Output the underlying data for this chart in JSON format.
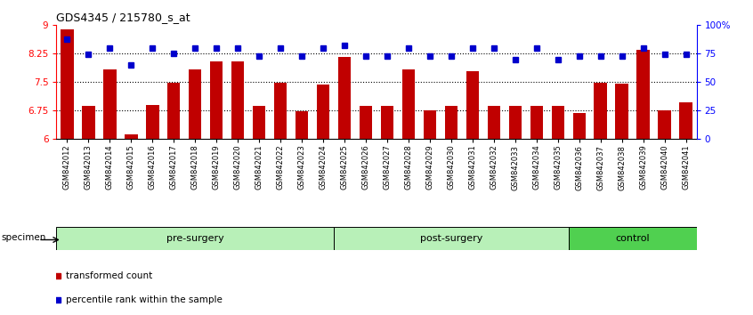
{
  "title": "GDS4345 / 215780_s_at",
  "categories": [
    "GSM842012",
    "GSM842013",
    "GSM842014",
    "GSM842015",
    "GSM842016",
    "GSM842017",
    "GSM842018",
    "GSM842019",
    "GSM842020",
    "GSM842021",
    "GSM842022",
    "GSM842023",
    "GSM842024",
    "GSM842025",
    "GSM842026",
    "GSM842027",
    "GSM842028",
    "GSM842029",
    "GSM842030",
    "GSM842031",
    "GSM842032",
    "GSM842033",
    "GSM842034",
    "GSM842035",
    "GSM842036",
    "GSM842037",
    "GSM842038",
    "GSM842039",
    "GSM842040",
    "GSM842041"
  ],
  "red_values": [
    8.88,
    6.87,
    7.82,
    6.12,
    6.88,
    7.48,
    7.82,
    8.05,
    8.05,
    6.87,
    7.48,
    6.72,
    7.42,
    8.17,
    6.87,
    6.87,
    7.82,
    6.75,
    6.87,
    7.78,
    6.87,
    6.87,
    6.87,
    6.87,
    6.67,
    7.48,
    7.45,
    8.35,
    6.75,
    6.97
  ],
  "blue_values": [
    88,
    74,
    80,
    65,
    80,
    75,
    80,
    80,
    80,
    73,
    80,
    73,
    80,
    82,
    73,
    73,
    80,
    73,
    73,
    80,
    80,
    70,
    80,
    70,
    73,
    73,
    73,
    80,
    74,
    74
  ],
  "group_labels": [
    "pre-surgery",
    "post-surgery",
    "control"
  ],
  "group_ranges": [
    [
      0,
      13
    ],
    [
      13,
      24
    ],
    [
      24,
      30
    ]
  ],
  "group_colors_fill": [
    "#b8f0b8",
    "#b8f0b8",
    "#50d050"
  ],
  "ylim_left": [
    6,
    9
  ],
  "ylim_right": [
    0,
    100
  ],
  "yticks_left": [
    6,
    6.75,
    7.5,
    8.25,
    9
  ],
  "ytick_labels_left": [
    "6",
    "6.75",
    "7.5",
    "8.25",
    "9"
  ],
  "yticks_right": [
    0,
    25,
    50,
    75,
    100
  ],
  "ytick_labels_right": [
    "0",
    "25",
    "50",
    "75",
    "100%"
  ],
  "hlines": [
    6.75,
    7.5,
    8.25
  ],
  "bar_color": "#C00000",
  "dot_color": "#0000CC",
  "bar_width": 0.6,
  "specimen_label": "specimen",
  "legend_items": [
    {
      "label": "transformed count",
      "color": "#C00000"
    },
    {
      "label": "percentile rank within the sample",
      "color": "#0000CC"
    }
  ]
}
